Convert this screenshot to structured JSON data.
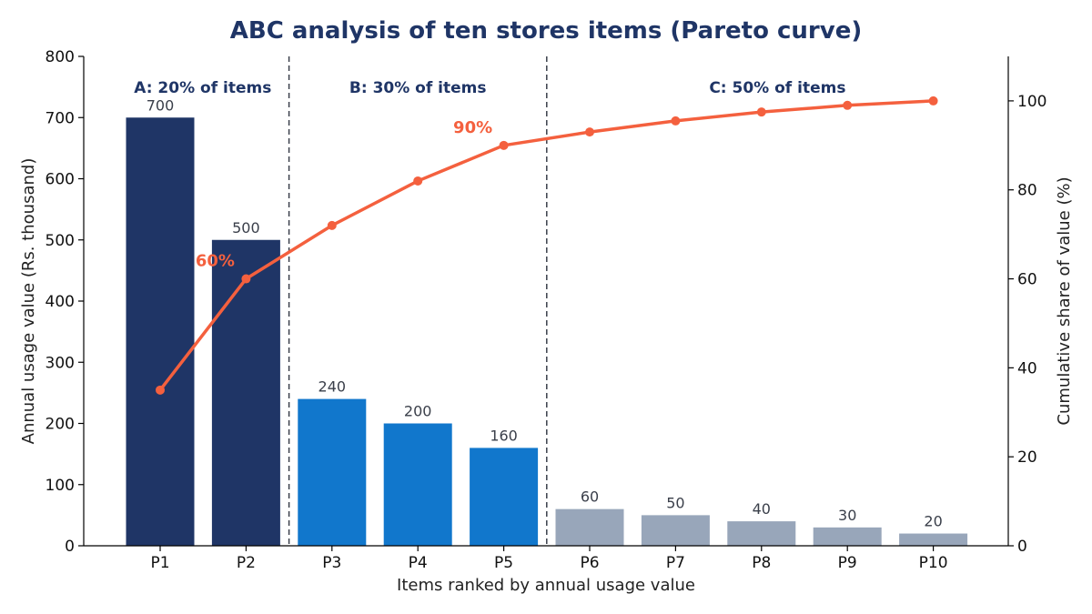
{
  "chart_data": {
    "type": "bar",
    "title": "ABC analysis of ten stores items (Pareto curve)",
    "xlabel": "Items ranked by annual usage value",
    "ylabel": "Annual usage value (Rs. thousand)",
    "y2label": "Cumulative share of value (%)",
    "categories": [
      "P1",
      "P2",
      "P3",
      "P4",
      "P5",
      "P6",
      "P7",
      "P8",
      "P9",
      "P10"
    ],
    "values": [
      700,
      500,
      240,
      200,
      160,
      60,
      50,
      40,
      30,
      20
    ],
    "bar_labels": [
      "700",
      "500",
      "240",
      "200",
      "160",
      "60",
      "50",
      "40",
      "30",
      "20"
    ],
    "ylim": [
      0,
      800
    ],
    "yticks": [
      0,
      100,
      200,
      300,
      400,
      500,
      600,
      700,
      800
    ],
    "y2lim": [
      0,
      110
    ],
    "y2ticks": [
      0,
      20,
      40,
      60,
      80,
      100
    ],
    "cumulative": [
      35,
      60,
      72,
      82,
      90,
      93,
      95.5,
      97.5,
      99,
      100
    ],
    "classes": [
      {
        "label": "A: 20% of items",
        "start": 0,
        "end": 1,
        "color": "#1f3566"
      },
      {
        "label": "B: 30% of items",
        "start": 2,
        "end": 4,
        "color": "#1177cc"
      },
      {
        "label": "C: 50% of items",
        "start": 5,
        "end": 9,
        "color": "#98a6ba"
      }
    ],
    "annotations": [
      {
        "text": "60%",
        "index": 1,
        "y2": 60
      },
      {
        "text": "90%",
        "index": 4,
        "y2": 90
      }
    ],
    "line_color": "#f4603e",
    "grid": false
  }
}
